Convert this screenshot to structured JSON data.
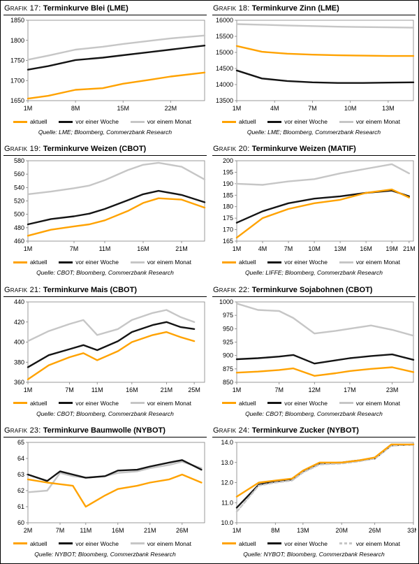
{
  "colors": {
    "aktuell": "#FFA200",
    "week": "#141414",
    "month": "#C6C6C6",
    "axis": "#7f7f7f",
    "text": "#000000"
  },
  "legend_labels": {
    "aktuell": "aktuell",
    "week": "vor einer Woche",
    "month": "vor einem Monat"
  },
  "chart_data": [
    {
      "type": "line",
      "title_prefix": "Grafik 17:",
      "title": "Terminkurve Blei (LME)",
      "source": "Quelle: LME; Bloomberg, Commerzbank Research",
      "xlim": [
        1,
        27
      ],
      "x_ticks": [
        1,
        8,
        15,
        22
      ],
      "x_tick_labels": [
        "1M",
        "8M",
        "15M",
        "22M"
      ],
      "ylim": [
        1650,
        1850
      ],
      "y_ticks": [
        1650,
        1700,
        1750,
        1800,
        1850
      ],
      "y_tick_labels": [
        "1650",
        "1700",
        "1750",
        "1800",
        "1850"
      ],
      "x": [
        1,
        4,
        8,
        12,
        15,
        19,
        22,
        27
      ],
      "series": [
        {
          "key": "month",
          "name": "vor einem Monat",
          "dash": false,
          "values": [
            1752,
            1762,
            1777,
            1784,
            1791,
            1799,
            1805,
            1812
          ]
        },
        {
          "key": "week",
          "name": "vor einer Woche",
          "dash": false,
          "values": [
            1727,
            1736,
            1751,
            1757,
            1763,
            1771,
            1777,
            1787
          ]
        },
        {
          "key": "aktuell",
          "name": "aktuell",
          "dash": false,
          "values": [
            1655,
            1662,
            1677,
            1681,
            1692,
            1702,
            1710,
            1720
          ]
        }
      ]
    },
    {
      "type": "line",
      "title_prefix": "Grafik 18:",
      "title": "Terminkurve Zinn (LME)",
      "source": "Quelle: LME; Bloomberg, Commerzbank Research",
      "xlim": [
        1,
        15
      ],
      "x_ticks": [
        1,
        4,
        7,
        10,
        13
      ],
      "x_tick_labels": [
        "1M",
        "4M",
        "7M",
        "10M",
        "13M"
      ],
      "ylim": [
        13500,
        16000
      ],
      "y_ticks": [
        13500,
        14000,
        14500,
        15000,
        15500,
        16000
      ],
      "y_tick_labels": [
        "13500",
        "14000",
        "14500",
        "15000",
        "15500",
        "16000"
      ],
      "x": [
        1,
        3,
        5,
        7,
        9,
        11,
        13,
        15
      ],
      "series": [
        {
          "key": "month",
          "name": "vor einem Monat",
          "dash": false,
          "values": [
            15880,
            15860,
            15840,
            15820,
            15800,
            15790,
            15780,
            15770
          ]
        },
        {
          "key": "week",
          "name": "vor einer Woche",
          "dash": false,
          "values": [
            14440,
            14190,
            14110,
            14070,
            14050,
            14050,
            14060,
            14070
          ]
        },
        {
          "key": "aktuell",
          "name": "aktuell",
          "dash": false,
          "values": [
            15200,
            15020,
            14960,
            14930,
            14910,
            14900,
            14890,
            14890
          ]
        }
      ]
    },
    {
      "type": "line",
      "title_prefix": "Grafik 19:",
      "title": "Terminkurve Weizen (CBOT)",
      "source": "Quelle: CBOT; Bloomberg, Commerzbank Research",
      "xlim": [
        1,
        24
      ],
      "x_ticks": [
        1,
        7,
        11,
        16,
        21
      ],
      "x_tick_labels": [
        "1M",
        "7M",
        "11M",
        "16M",
        "21M"
      ],
      "ylim": [
        460,
        580
      ],
      "y_ticks": [
        460,
        480,
        500,
        520,
        540,
        560,
        580
      ],
      "y_tick_labels": [
        "460",
        "480",
        "500",
        "520",
        "540",
        "560",
        "580"
      ],
      "x": [
        1,
        4,
        7,
        9,
        11,
        14,
        16,
        18,
        21,
        24
      ],
      "series": [
        {
          "key": "month",
          "name": "vor einem Monat",
          "dash": false,
          "values": [
            530,
            534,
            539,
            543,
            551,
            566,
            574,
            577,
            571,
            552
          ]
        },
        {
          "key": "week",
          "name": "vor einer Woche",
          "dash": false,
          "values": [
            485,
            493,
            497,
            501,
            508,
            521,
            530,
            535,
            529,
            518
          ]
        },
        {
          "key": "aktuell",
          "name": "aktuell",
          "dash": false,
          "values": [
            468,
            477,
            482,
            485,
            491,
            505,
            517,
            524,
            522,
            510
          ]
        }
      ]
    },
    {
      "type": "line",
      "title_prefix": "Grafik 20:",
      "title": "Terminkurve Weizen (MATIF)",
      "source": "Quelle: LIFFE; Bloomberg, Commerzbank Research",
      "xlim": [
        1,
        21.5
      ],
      "x_ticks": [
        1,
        4,
        7,
        10,
        13,
        16,
        19,
        21
      ],
      "x_tick_labels": [
        "1M",
        "4M",
        "7M",
        "10M",
        "13M",
        "16M",
        "19M",
        "21M"
      ],
      "ylim": [
        165,
        200
      ],
      "y_ticks": [
        165,
        170,
        175,
        180,
        185,
        190,
        195,
        200
      ],
      "y_tick_labels": [
        "165",
        "170",
        "175",
        "180",
        "185",
        "190",
        "195",
        "200"
      ],
      "x": [
        1,
        4,
        7,
        10,
        13,
        16,
        19,
        21
      ],
      "series": [
        {
          "key": "month",
          "name": "vor einem Monat",
          "dash": false,
          "values": [
            190,
            189.5,
            191,
            192,
            194.5,
            196.5,
            198.5,
            194.5
          ]
        },
        {
          "key": "week",
          "name": "vor einer Woche",
          "dash": false,
          "values": [
            173,
            178,
            181.5,
            183.5,
            184.5,
            186,
            187,
            184.5
          ]
        },
        {
          "key": "aktuell",
          "name": "aktuell",
          "dash": false,
          "values": [
            166.5,
            175,
            179,
            181.5,
            183,
            186,
            187.5,
            184
          ]
        }
      ]
    },
    {
      "type": "line",
      "title_prefix": "Grafik 21:",
      "title": "Terminkurve Mais (CBOT)",
      "source": "Quelle: CBOT; Bloomberg, Commerzbank Research",
      "xlim": [
        1,
        26.5
      ],
      "x_ticks": [
        1,
        7,
        11,
        16,
        21,
        25
      ],
      "x_tick_labels": [
        "1M",
        "7M",
        "11M",
        "16M",
        "21M",
        "25M"
      ],
      "ylim": [
        360,
        440
      ],
      "y_ticks": [
        360,
        380,
        400,
        420,
        440
      ],
      "y_tick_labels": [
        "360",
        "380",
        "400",
        "420",
        "440"
      ],
      "x": [
        1,
        4,
        7,
        9,
        11,
        14,
        16,
        19,
        21,
        23,
        25
      ],
      "series": [
        {
          "key": "month",
          "name": "vor einem Monat",
          "dash": false,
          "values": [
            401,
            411,
            418,
            422,
            407,
            413,
            422,
            429,
            432,
            425,
            420
          ]
        },
        {
          "key": "week",
          "name": "vor einer Woche",
          "dash": false,
          "values": [
            375,
            387,
            393,
            397,
            392,
            401,
            410,
            417,
            420,
            415,
            413
          ]
        },
        {
          "key": "aktuell",
          "name": "aktuell",
          "dash": false,
          "values": [
            363,
            377,
            385,
            389,
            382,
            391,
            400,
            407,
            410,
            405,
            401
          ]
        }
      ]
    },
    {
      "type": "line",
      "title_prefix": "Grafik 22:",
      "title": "Terminkurve Sojabohnen (CBOT)",
      "source": "Quelle: CBOT; Bloomberg, Commerzbank Research",
      "xlim": [
        1,
        26
      ],
      "x_ticks": [
        1,
        7,
        12,
        17,
        23
      ],
      "x_tick_labels": [
        "1M",
        "7M",
        "12M",
        "17M",
        "23M"
      ],
      "ylim": [
        850,
        1000
      ],
      "y_ticks": [
        850,
        875,
        900,
        925,
        950,
        975,
        1000
      ],
      "y_tick_labels": [
        "850",
        "875",
        "900",
        "925",
        "950",
        "975",
        "1000"
      ],
      "x": [
        1,
        4,
        7,
        9,
        12,
        15,
        17,
        20,
        23,
        26
      ],
      "series": [
        {
          "key": "month",
          "name": "vor einem Monat",
          "dash": false,
          "values": [
            997,
            985,
            983,
            970,
            941,
            946,
            950,
            956,
            948,
            937
          ]
        },
        {
          "key": "week",
          "name": "vor einer Woche",
          "dash": false,
          "values": [
            893,
            895,
            898,
            901,
            885,
            891,
            895,
            899,
            902,
            892
          ]
        },
        {
          "key": "aktuell",
          "name": "aktuell",
          "dash": false,
          "values": [
            868,
            870,
            873,
            876,
            862,
            867,
            871,
            875,
            878,
            869
          ]
        }
      ]
    },
    {
      "type": "line",
      "title_prefix": "Grafik 23:",
      "title": "Terminkurve Baumwolle (NYBOT)",
      "source": "Quelle: NYBOT; Bloomberg, Commerzbank Research",
      "xlim": [
        2,
        29.5
      ],
      "x_ticks": [
        2,
        7,
        11,
        16,
        21,
        26
      ],
      "x_tick_labels": [
        "2M",
        "7M",
        "11M",
        "16M",
        "21M",
        "26M"
      ],
      "ylim": [
        60,
        65
      ],
      "y_ticks": [
        60,
        61,
        62,
        63,
        64,
        65
      ],
      "y_tick_labels": [
        "60",
        "61",
        "62",
        "63",
        "64",
        "65"
      ],
      "x": [
        2,
        5,
        7,
        9,
        11,
        14,
        16,
        19,
        21,
        24,
        26,
        29
      ],
      "series": [
        {
          "key": "month",
          "name": "vor einem Monat",
          "dash": false,
          "values": [
            61.9,
            62.0,
            63.1,
            62.9,
            62.8,
            62.9,
            63.1,
            63.2,
            63.4,
            63.6,
            63.8,
            63.4
          ]
        },
        {
          "key": "week",
          "name": "vor einer Woche",
          "dash": false,
          "values": [
            63.0,
            62.6,
            63.2,
            63.0,
            62.8,
            62.9,
            63.25,
            63.3,
            63.5,
            63.75,
            63.9,
            63.3
          ]
        },
        {
          "key": "aktuell",
          "name": "aktuell",
          "dash": false,
          "values": [
            62.7,
            62.5,
            62.4,
            62.3,
            61.0,
            61.7,
            62.1,
            62.3,
            62.5,
            62.7,
            63.0,
            62.5
          ]
        }
      ]
    },
    {
      "type": "line",
      "title_prefix": "Grafik 24:",
      "title": "Terminkurve Zucker (NYBOT)",
      "source": "Quelle: NYBOT; Bloomberg, Commerzbank Research",
      "xlim": [
        1,
        33
      ],
      "x_ticks": [
        1,
        8,
        13,
        20,
        26,
        33
      ],
      "x_tick_labels": [
        "1M",
        "8M",
        "13M",
        "20M",
        "26M",
        "33M"
      ],
      "ylim": [
        10,
        14
      ],
      "y_ticks": [
        10,
        11,
        12,
        13,
        14
      ],
      "y_tick_labels": [
        "10.0",
        "11.0",
        "12.0",
        "13.0",
        "14.0"
      ],
      "x": [
        1,
        5,
        8,
        11,
        13,
        16,
        20,
        23,
        26,
        29,
        33
      ],
      "series": [
        {
          "key": "week",
          "name": "vor einer Woche",
          "dash": false,
          "values": [
            10.75,
            11.9,
            12.05,
            12.15,
            12.55,
            12.95,
            13.0,
            13.1,
            13.2,
            13.85,
            13.9
          ]
        },
        {
          "key": "month",
          "name": "vor einem Monat",
          "dash": true,
          "values": [
            10.55,
            11.85,
            12.0,
            12.1,
            12.5,
            12.9,
            12.95,
            13.05,
            13.2,
            13.85,
            13.9
          ]
        },
        {
          "key": "aktuell",
          "name": "aktuell",
          "dash": false,
          "values": [
            11.3,
            12.0,
            12.1,
            12.2,
            12.6,
            13.0,
            13.0,
            13.1,
            13.25,
            13.9,
            13.9
          ]
        }
      ]
    }
  ]
}
